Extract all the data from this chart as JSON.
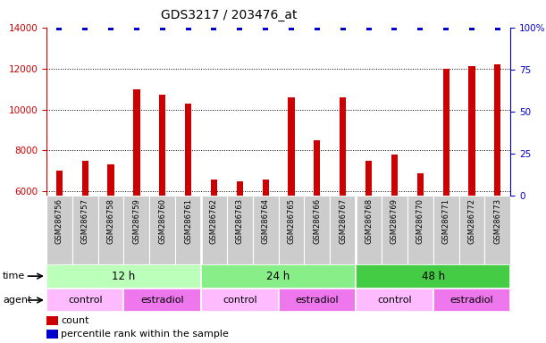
{
  "title": "GDS3217 / 203476_at",
  "samples": [
    "GSM286756",
    "GSM286757",
    "GSM286758",
    "GSM286759",
    "GSM286760",
    "GSM286761",
    "GSM286762",
    "GSM286763",
    "GSM286764",
    "GSM286765",
    "GSM286766",
    "GSM286767",
    "GSM286768",
    "GSM286769",
    "GSM286770",
    "GSM286771",
    "GSM286772",
    "GSM286773"
  ],
  "counts": [
    7000,
    7500,
    7300,
    11000,
    10700,
    10300,
    6600,
    6500,
    6600,
    10600,
    8500,
    10600,
    7500,
    7800,
    6900,
    12000,
    12100,
    12200
  ],
  "percentile_ranks": [
    100,
    100,
    100,
    100,
    100,
    100,
    100,
    100,
    100,
    100,
    100,
    100,
    100,
    100,
    100,
    100,
    100,
    100
  ],
  "bar_color": "#cc0000",
  "percentile_color": "#0000cc",
  "ylim_left": [
    5800,
    14000
  ],
  "ylim_right": [
    0,
    100
  ],
  "yticks_left": [
    6000,
    8000,
    10000,
    12000,
    14000
  ],
  "yticks_right": [
    0,
    25,
    50,
    75,
    100
  ],
  "grid_lines": [
    6000,
    8000,
    10000,
    12000
  ],
  "time_groups": [
    {
      "label": "12 h",
      "start": 0,
      "end": 6,
      "color": "#bbffbb"
    },
    {
      "label": "24 h",
      "start": 6,
      "end": 12,
      "color": "#88ee88"
    },
    {
      "label": "48 h",
      "start": 12,
      "end": 18,
      "color": "#44cc44"
    }
  ],
  "agent_groups": [
    {
      "label": "control",
      "start": 0,
      "end": 3,
      "color": "#ffbbff"
    },
    {
      "label": "estradiol",
      "start": 3,
      "end": 6,
      "color": "#ee77ee"
    },
    {
      "label": "control",
      "start": 6,
      "end": 9,
      "color": "#ffbbff"
    },
    {
      "label": "estradiol",
      "start": 9,
      "end": 12,
      "color": "#ee77ee"
    },
    {
      "label": "control",
      "start": 12,
      "end": 15,
      "color": "#ffbbff"
    },
    {
      "label": "estradiol",
      "start": 15,
      "end": 18,
      "color": "#ee77ee"
    }
  ],
  "legend_count_color": "#cc0000",
  "legend_pct_color": "#0000cc",
  "bg_color": "#ffffff",
  "tick_label_color_left": "#cc0000",
  "tick_label_color_right": "#0000cc",
  "bar_width": 0.25,
  "percentile_marker_size": 18,
  "xlabel_bg_color": "#cccccc",
  "xlabel_border_color": "#aaaaaa"
}
